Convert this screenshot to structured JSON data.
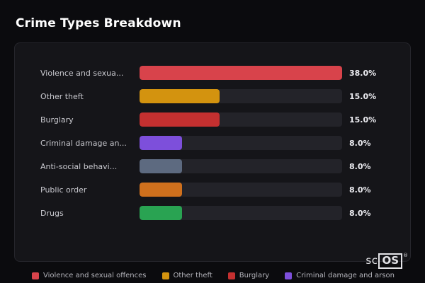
{
  "title": "Crime Types Breakdown",
  "chart_data": {
    "type": "bar",
    "orientation": "horizontal",
    "title": "Crime Types Breakdown",
    "categories": [
      "Violence and sexua...",
      "Other theft",
      "Burglary",
      "Criminal damage an...",
      "Anti-social behavi...",
      "Public order",
      "Drugs"
    ],
    "values": [
      38.0,
      15.0,
      15.0,
      8.0,
      8.0,
      8.0,
      8.0
    ],
    "value_labels": [
      "38.0%",
      "15.0%",
      "15.0%",
      "8.0%",
      "8.0%",
      "8.0%",
      "8.0%"
    ],
    "bar_colors": [
      "#d8434b",
      "#d3930f",
      "#c43030",
      "#7d4fdb",
      "#5d6a80",
      "#cf701d",
      "#29a352"
    ],
    "max_value": 38.0,
    "xlim": [
      0,
      38
    ],
    "grid": false,
    "legend_position": "bottom"
  },
  "legend": [
    {
      "label": "Violence and sexual offences",
      "color": "#d8434b"
    },
    {
      "label": "Other theft",
      "color": "#d3930f"
    },
    {
      "label": "Burglary",
      "color": "#c43030"
    },
    {
      "label": "Criminal damage and arson",
      "color": "#7d4fdb"
    }
  ],
  "watermark": {
    "prefix": "sc",
    "boxed": "OS",
    "reg": "®"
  },
  "colors": {
    "page_bg": "#0b0b0e",
    "panel_bg": "#151519",
    "track_bg": "#232329",
    "title_text": "#ffffff",
    "label_text": "#c9c9cf",
    "value_text": "#ececf1"
  }
}
